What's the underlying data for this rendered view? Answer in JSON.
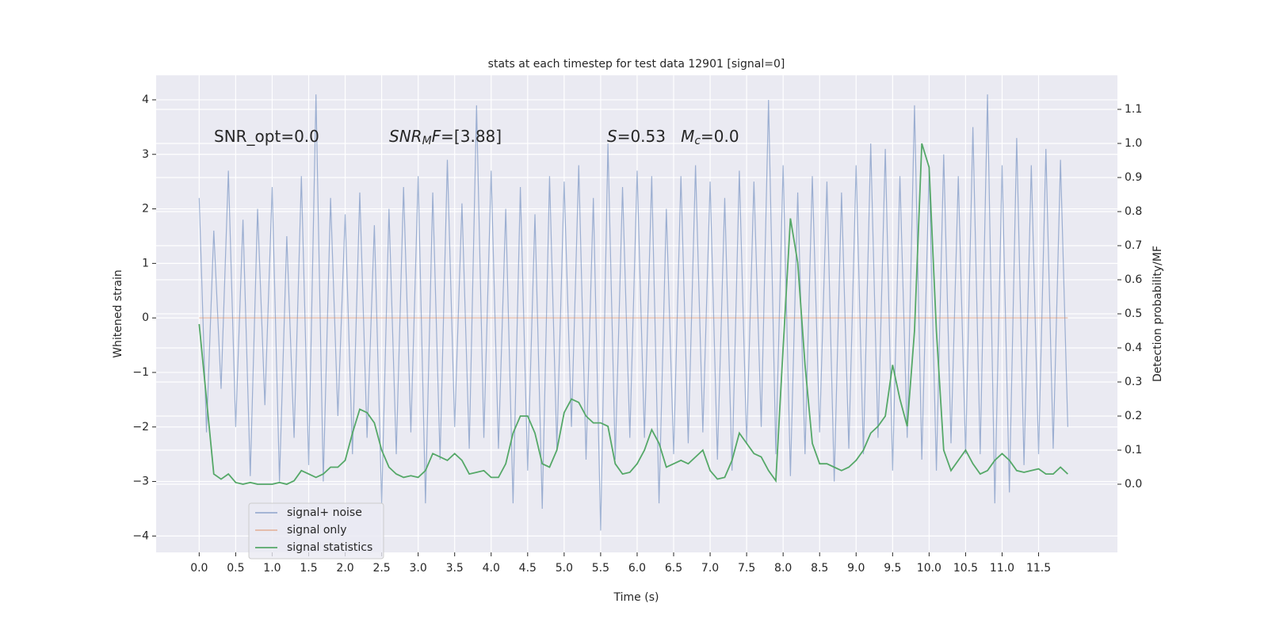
{
  "chart_data": {
    "type": "line",
    "title": "stats at each timestep for test data 12901 [signal=0]",
    "x_label": "Time (s)",
    "y_label": "Whitened strain",
    "y2_label": "Detection probability/MF",
    "annotations": [
      {
        "parts": [
          {
            "text": "SNR_opt=0.0",
            "style": "normal"
          }
        ]
      },
      {
        "parts": [
          {
            "text": "SNR",
            "style": "italic"
          },
          {
            "text": "M",
            "style": "sub"
          },
          {
            "text": "F",
            "style": "italic"
          },
          {
            "text": "=[3.88]",
            "style": "normal"
          }
        ]
      },
      {
        "parts": [
          {
            "text": "S",
            "style": "italic"
          },
          {
            "text": "=0.53   ",
            "style": "normal"
          },
          {
            "text": "M",
            "style": "italic"
          },
          {
            "text": "c",
            "style": "sub"
          },
          {
            "text": "=0.0",
            "style": "normal"
          }
        ]
      }
    ],
    "grid": true,
    "legend": "lower left",
    "xlim": [
      -0.59,
      12.58
    ],
    "ylim": [
      -4.3,
      4.45
    ],
    "y2lim": [
      -0.2,
      1.2
    ],
    "xticks": [
      {
        "value": 0,
        "label": "0.0"
      },
      0.5,
      {
        "value": 1,
        "label": "1.0"
      },
      1.5,
      {
        "value": 2,
        "label": "2.0"
      },
      2.5,
      {
        "value": 3,
        "label": "3.0"
      },
      3.5,
      {
        "value": 4,
        "label": "4.0"
      },
      4.5,
      {
        "value": 5,
        "label": "5.0"
      },
      5.5,
      {
        "value": 6,
        "label": "6.0"
      },
      6.5,
      {
        "value": 7,
        "label": "7.0"
      },
      7.5,
      {
        "value": 8,
        "label": "8.0"
      },
      8.5,
      {
        "value": 9,
        "label": "9.0"
      },
      9.5,
      {
        "value": 10,
        "label": "10.0"
      },
      10.5,
      {
        "value": 11,
        "label": "11.0"
      },
      11.5
    ],
    "yticks": [
      {
        "value": -4,
        "label": "−4"
      },
      {
        "value": -3,
        "label": "−3"
      },
      {
        "value": -2,
        "label": "−2"
      },
      {
        "value": -1,
        "label": "−1"
      },
      0,
      1,
      2,
      3,
      4
    ],
    "y2ticks": [
      {
        "value": 0,
        "label": "0.0"
      },
      0.1,
      0.2,
      0.3,
      0.4,
      0.5,
      0.6,
      0.7,
      0.8,
      0.9,
      {
        "value": 1,
        "label": "1.0"
      },
      1.1
    ],
    "x": [
      0.0,
      0.1,
      0.2,
      0.3,
      0.4,
      0.5,
      0.6,
      0.7,
      0.8,
      0.9,
      1.0,
      1.1,
      1.2,
      1.3,
      1.4,
      1.5,
      1.6,
      1.7,
      1.8,
      1.9,
      2.0,
      2.1,
      2.2,
      2.3,
      2.4,
      2.5,
      2.6,
      2.7,
      2.8,
      2.9,
      3.0,
      3.1,
      3.2,
      3.3,
      3.4,
      3.5,
      3.6,
      3.7,
      3.8,
      3.9,
      4.0,
      4.1,
      4.2,
      4.3,
      4.4,
      4.5,
      4.6,
      4.7,
      4.8,
      4.9,
      5.0,
      5.1,
      5.2,
      5.3,
      5.4,
      5.5,
      5.6,
      5.7,
      5.8,
      5.9,
      6.0,
      6.1,
      6.2,
      6.3,
      6.4,
      6.5,
      6.6,
      6.7,
      6.8,
      6.9,
      7.0,
      7.1,
      7.2,
      7.3,
      7.4,
      7.5,
      7.6,
      7.7,
      7.8,
      7.9,
      8.0,
      8.1,
      8.2,
      8.3,
      8.4,
      8.5,
      8.6,
      8.7,
      8.8,
      8.9,
      9.0,
      9.1,
      9.2,
      9.3,
      9.4,
      9.5,
      9.6,
      9.7,
      9.8,
      9.9,
      10.0,
      10.1,
      10.2,
      10.3,
      10.4,
      10.5,
      10.6,
      10.7,
      10.8,
      10.9,
      11.0,
      11.1,
      11.2,
      11.3,
      11.4,
      11.5,
      11.6,
      11.7,
      11.8,
      11.9
    ],
    "series": [
      {
        "name": "signal+ noise",
        "color": "#4c72b0",
        "alpha": 0.5,
        "axis": "y",
        "values": [
          2.2,
          -2.1,
          1.6,
          -1.3,
          2.7,
          -2.0,
          1.8,
          -2.9,
          2.0,
          -1.6,
          2.4,
          -3.0,
          1.5,
          -2.2,
          2.6,
          -2.7,
          4.1,
          -3.0,
          2.2,
          -1.8,
          1.9,
          -2.5,
          2.3,
          -2.2,
          1.7,
          -3.4,
          2.0,
          -2.5,
          2.4,
          -2.1,
          2.6,
          -3.4,
          2.3,
          -2.6,
          2.9,
          -2.0,
          2.1,
          -2.4,
          3.9,
          -2.2,
          2.7,
          -2.4,
          2.0,
          -3.4,
          2.4,
          -2.8,
          1.9,
          -3.5,
          2.6,
          -2.4,
          2.5,
          -2.0,
          2.8,
          -2.6,
          2.2,
          -3.9,
          3.2,
          -2.6,
          2.4,
          -2.2,
          2.7,
          -2.2,
          2.6,
          -3.4,
          2.0,
          -2.5,
          2.6,
          -2.3,
          2.8,
          -2.1,
          2.5,
          -2.6,
          2.2,
          -2.8,
          2.7,
          -2.3,
          2.5,
          -2.0,
          4.0,
          -2.5,
          2.8,
          -2.9,
          2.3,
          -2.5,
          2.6,
          -2.1,
          2.5,
          -3.0,
          2.3,
          -2.4,
          2.8,
          -2.5,
          3.2,
          -2.2,
          3.1,
          -2.8,
          2.6,
          -2.2,
          3.9,
          -2.6,
          2.7,
          -2.8,
          3.0,
          -2.3,
          2.6,
          -2.5,
          3.5,
          -2.5,
          4.1,
          -3.4,
          2.8,
          -3.2,
          3.3,
          -2.7,
          2.8,
          -2.5,
          3.1,
          -2.4,
          2.9,
          -2.0
        ]
      },
      {
        "name": "signal only",
        "color": "#dd8452",
        "alpha": 0.5,
        "axis": "y",
        "values": [
          0,
          0,
          0,
          0,
          0,
          0,
          0,
          0,
          0,
          0,
          0,
          0,
          0,
          0,
          0,
          0,
          0,
          0,
          0,
          0,
          0,
          0,
          0,
          0,
          0,
          0,
          0,
          0,
          0,
          0,
          0,
          0,
          0,
          0,
          0,
          0,
          0,
          0,
          0,
          0,
          0,
          0,
          0,
          0,
          0,
          0,
          0,
          0,
          0,
          0,
          0,
          0,
          0,
          0,
          0,
          0,
          0,
          0,
          0,
          0,
          0,
          0,
          0,
          0,
          0,
          0,
          0,
          0,
          0,
          0,
          0,
          0,
          0,
          0,
          0,
          0,
          0,
          0,
          0,
          0,
          0,
          0,
          0,
          0,
          0,
          0,
          0,
          0,
          0,
          0,
          0,
          0,
          0,
          0,
          0,
          0,
          0,
          0,
          0,
          0,
          0,
          0,
          0,
          0,
          0,
          0,
          0,
          0,
          0,
          0,
          0,
          0,
          0,
          0,
          0,
          0,
          0,
          0,
          0,
          0
        ]
      },
      {
        "name": "signal statistics",
        "color": "#55a868",
        "alpha": 1,
        "axis": "y2",
        "values": [
          0.47,
          0.25,
          0.03,
          0.015,
          0.03,
          0.005,
          0.0,
          0.005,
          0.0,
          0.0,
          0.0,
          0.005,
          0.0,
          0.01,
          0.04,
          0.03,
          0.02,
          0.03,
          0.05,
          0.05,
          0.07,
          0.15,
          0.22,
          0.21,
          0.18,
          0.1,
          0.05,
          0.03,
          0.02,
          0.025,
          0.02,
          0.04,
          0.09,
          0.08,
          0.07,
          0.09,
          0.07,
          0.03,
          0.035,
          0.04,
          0.02,
          0.02,
          0.06,
          0.15,
          0.2,
          0.2,
          0.15,
          0.06,
          0.05,
          0.1,
          0.21,
          0.25,
          0.24,
          0.2,
          0.18,
          0.18,
          0.17,
          0.06,
          0.03,
          0.035,
          0.06,
          0.1,
          0.16,
          0.12,
          0.05,
          0.06,
          0.07,
          0.06,
          0.08,
          0.1,
          0.04,
          0.015,
          0.02,
          0.07,
          0.15,
          0.12,
          0.09,
          0.08,
          0.04,
          0.01,
          0.4,
          0.78,
          0.65,
          0.35,
          0.12,
          0.06,
          0.06,
          0.05,
          0.04,
          0.05,
          0.07,
          0.1,
          0.15,
          0.17,
          0.2,
          0.35,
          0.25,
          0.17,
          0.45,
          1.0,
          0.93,
          0.45,
          0.1,
          0.04,
          0.07,
          0.1,
          0.06,
          0.03,
          0.04,
          0.07,
          0.09,
          0.07,
          0.04,
          0.035,
          0.04,
          0.045,
          0.03,
          0.03,
          0.05,
          0.03
        ]
      }
    ]
  }
}
